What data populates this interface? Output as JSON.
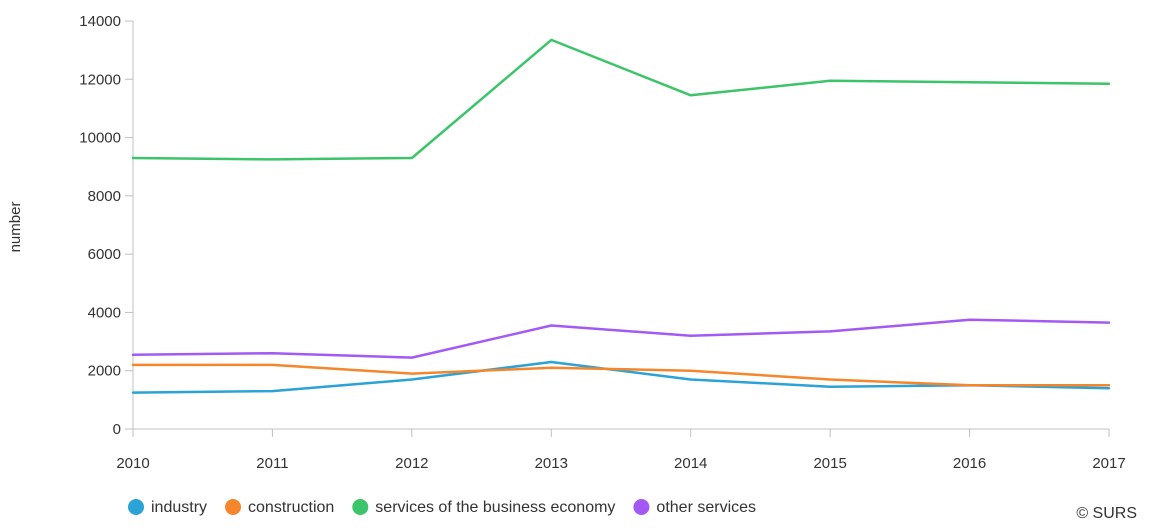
{
  "chart_data": {
    "type": "line",
    "ylabel": "number",
    "x": [
      "2010",
      "2011",
      "2012",
      "2013",
      "2014",
      "2015",
      "2016",
      "2017"
    ],
    "ylim": [
      0,
      14000
    ],
    "yticks": [
      "0",
      "2000",
      "4000",
      "6000",
      "8000",
      "10000",
      "12000",
      "14000"
    ],
    "grid": false,
    "legend_position": "bottom",
    "series": [
      {
        "name": "industry",
        "color": "#2ba3d6",
        "values": [
          1250,
          1300,
          1700,
          2300,
          1700,
          1450,
          1500,
          1400
        ]
      },
      {
        "name": "construction",
        "color": "#f5862c",
        "values": [
          2200,
          2200,
          1900,
          2100,
          2000,
          1700,
          1500,
          1500
        ]
      },
      {
        "name": "services of the business economy",
        "color": "#3cc46a",
        "values": [
          9300,
          9250,
          9300,
          13350,
          11450,
          11950,
          11900,
          11850
        ]
      },
      {
        "name": "other services",
        "color": "#a35af5",
        "values": [
          2550,
          2600,
          2450,
          3550,
          3200,
          3350,
          3750,
          3650
        ]
      }
    ],
    "credit": "© SURS"
  }
}
